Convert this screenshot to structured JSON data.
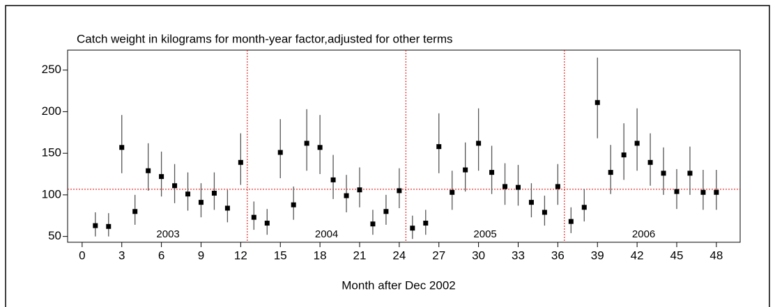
{
  "chart_data": {
    "type": "errorbar",
    "title": "Catch weight in kilograms for month-year factor,adjusted for other terms",
    "x_label": "Month after Dec 2002",
    "x": [
      1,
      2,
      3,
      4,
      5,
      6,
      7,
      8,
      9,
      10,
      11,
      12,
      13,
      14,
      15,
      16,
      17,
      18,
      19,
      20,
      21,
      22,
      23,
      24,
      25,
      26,
      27,
      28,
      29,
      30,
      31,
      32,
      33,
      34,
      35,
      36,
      37,
      38,
      39,
      40,
      41,
      42,
      43,
      44,
      45,
      46,
      47,
      48
    ],
    "values": [
      63,
      62,
      157,
      80,
      129,
      122,
      111,
      101,
      91,
      102,
      84,
      139,
      73,
      66,
      151,
      88,
      162,
      157,
      118,
      99,
      106,
      65,
      80,
      105,
      60,
      66,
      158,
      103,
      130,
      162,
      127,
      110,
      109,
      91,
      79,
      110,
      68,
      85,
      211,
      127,
      148,
      162,
      139,
      126,
      104,
      126,
      103,
      103
    ],
    "lower": [
      50,
      50,
      126,
      64,
      105,
      98,
      90,
      81,
      73,
      82,
      67,
      112,
      58,
      52,
      120,
      70,
      129,
      125,
      95,
      79,
      85,
      52,
      64,
      84,
      47,
      52,
      126,
      82,
      104,
      129,
      101,
      88,
      87,
      73,
      63,
      88,
      54,
      68,
      168,
      101,
      118,
      129,
      111,
      100,
      83,
      100,
      82,
      82
    ],
    "upper": [
      79,
      78,
      196,
      100,
      162,
      152,
      137,
      127,
      114,
      127,
      106,
      174,
      92,
      83,
      191,
      110,
      203,
      196,
      148,
      124,
      133,
      82,
      100,
      132,
      75,
      82,
      198,
      129,
      163,
      204,
      159,
      138,
      136,
      114,
      99,
      137,
      85,
      107,
      265,
      160,
      186,
      204,
      174,
      157,
      131,
      158,
      130,
      130
    ],
    "color": "#000000",
    "bar_color": "#555555",
    "xlim": [
      -1.1,
      49.8
    ],
    "ylim": [
      43,
      274
    ],
    "xticks": [
      0,
      3,
      6,
      9,
      12,
      15,
      18,
      21,
      24,
      27,
      30,
      33,
      36,
      39,
      42,
      45,
      48
    ],
    "yticks": [
      50,
      100,
      150,
      200,
      250
    ],
    "reference_color": "#e00000",
    "hline": 106.7,
    "vlines": [
      12.5,
      24.5,
      36.5
    ],
    "annotations": [
      {
        "text": "2003",
        "x": 6.5,
        "y": 52
      },
      {
        "text": "2004",
        "x": 18.5,
        "y": 52
      },
      {
        "text": "2005",
        "x": 30.5,
        "y": 52
      },
      {
        "text": "2006",
        "x": 42.5,
        "y": 52
      }
    ]
  }
}
